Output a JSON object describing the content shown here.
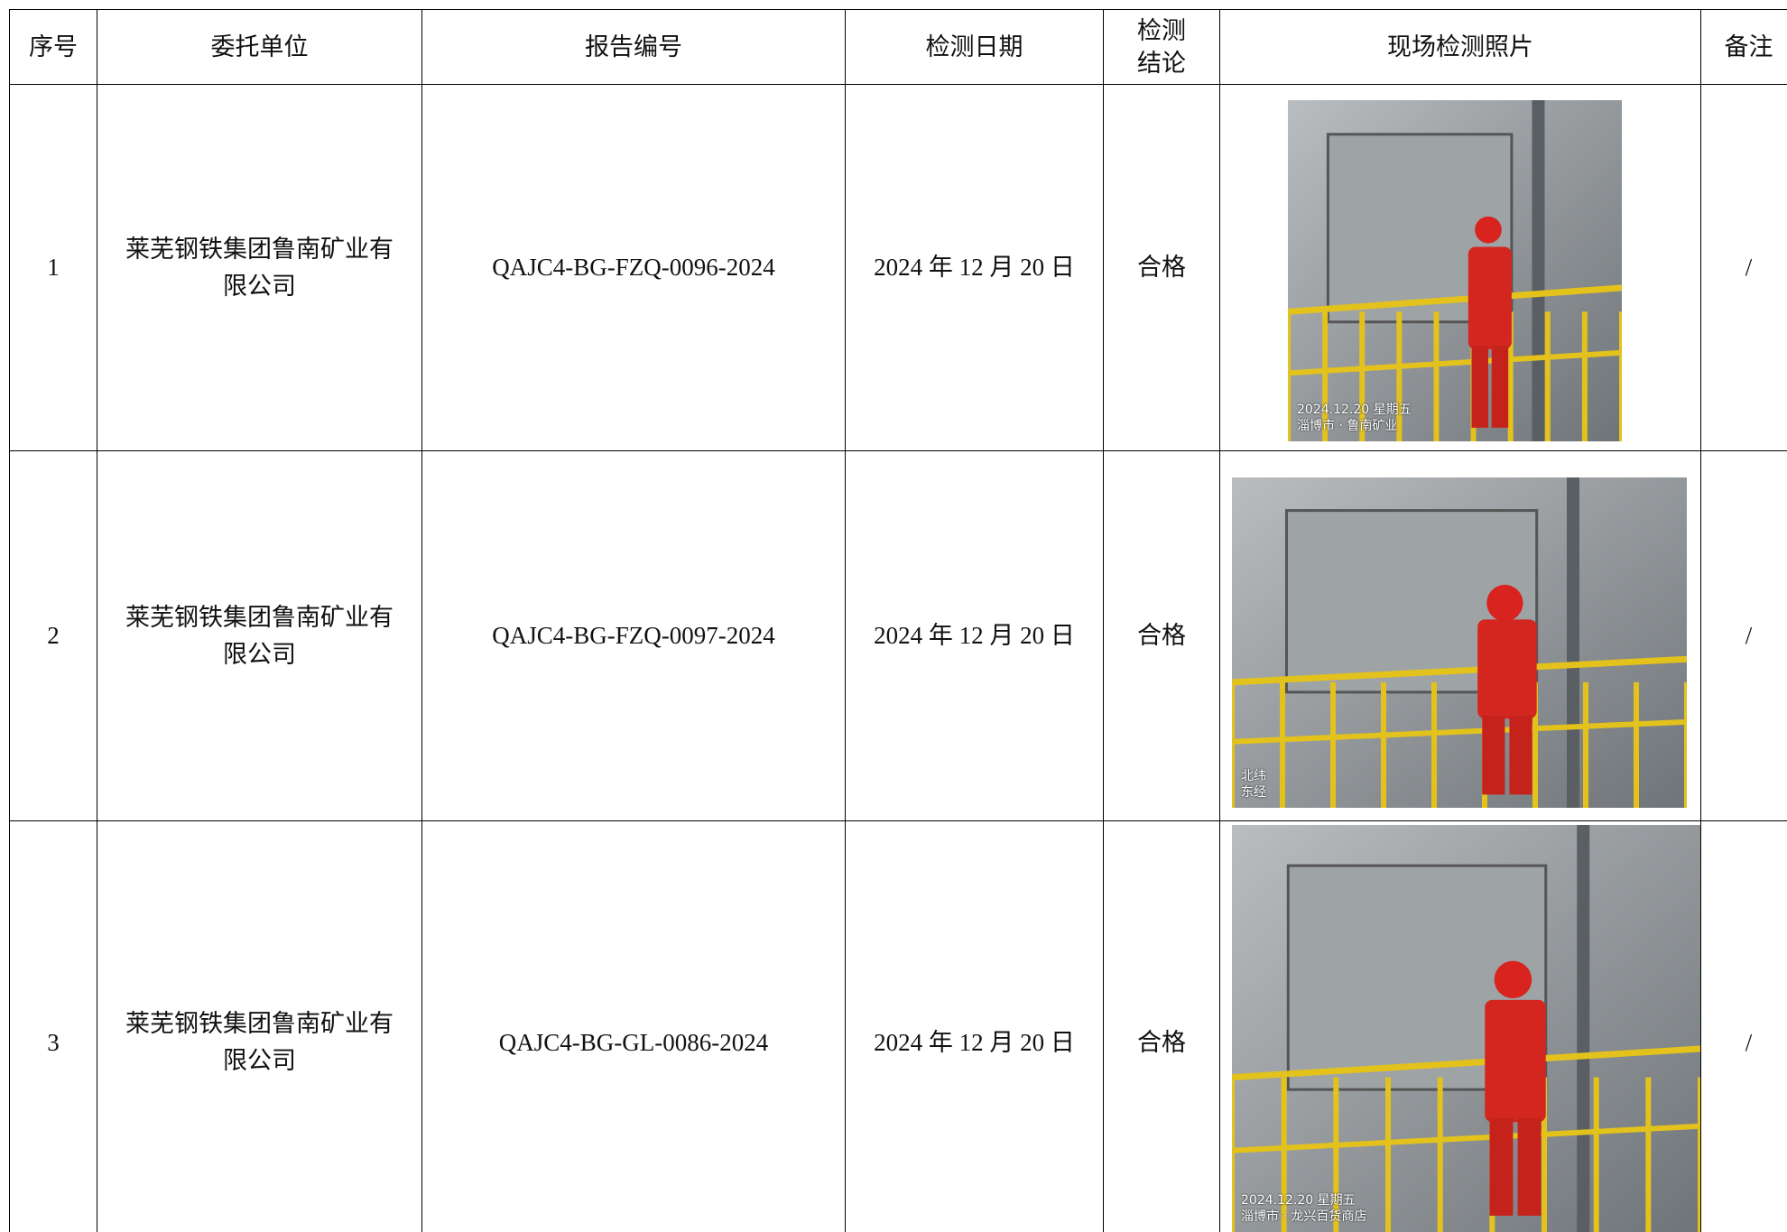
{
  "table": {
    "headers": [
      "序号",
      "委托单位",
      "报告编号",
      "检测日期",
      "检测结论",
      "现场检测照片",
      "备注"
    ],
    "rows": [
      {
        "seq": "1",
        "client": "莱芜钢铁集团鲁南矿业有限公司",
        "report_no": "QAJC4-BG-FZQ-0096-2024",
        "date": "2024 年 12 月 20 日",
        "conclusion": "合格",
        "photo_watermark": [
          "2024.12.20 星期五",
          "淄博市 · 鲁南矿业"
        ],
        "remark": "/"
      },
      {
        "seq": "2",
        "client": "莱芜钢铁集团鲁南矿业有限公司",
        "report_no": "QAJC4-BG-FZQ-0097-2024",
        "date": "2024 年 12 月 20 日",
        "conclusion": "合格",
        "photo_watermark": [
          "北纬",
          "东经"
        ],
        "remark": "/"
      },
      {
        "seq": "3",
        "client": "莱芜钢铁集团鲁南矿业有限公司",
        "report_no": "QAJC4-BG-GL-0086-2024",
        "date": "2024 年 12 月 20 日",
        "conclusion": "合格",
        "photo_watermark": [
          "2024.12.20 星期五",
          "淄博市 · 龙兴百货商店"
        ],
        "remark": "/"
      }
    ]
  }
}
